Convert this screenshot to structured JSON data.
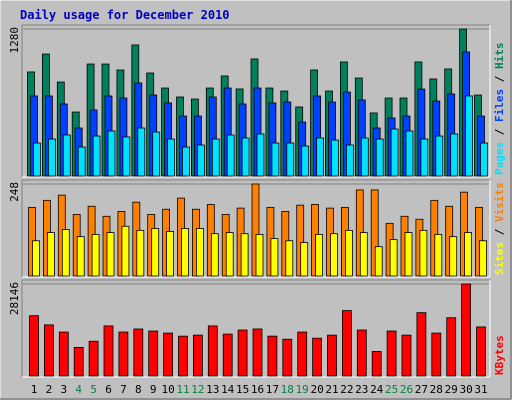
{
  "title": "Daily usage for December 2010",
  "categories": [
    "1",
    "2",
    "3",
    "4",
    "5",
    "6",
    "7",
    "8",
    "9",
    "10",
    "11",
    "12",
    "13",
    "14",
    "15",
    "16",
    "17",
    "18",
    "19",
    "20",
    "21",
    "22",
    "23",
    "24",
    "25",
    "26",
    "27",
    "28",
    "29",
    "30",
    "31"
  ],
  "label_colors": [
    "#000000",
    "#000000",
    "#000000",
    "#008040",
    "#008040",
    "#000000",
    "#000000",
    "#000000",
    "#000000",
    "#000000",
    "#008040",
    "#008040",
    "#000000",
    "#000000",
    "#000000",
    "#000000",
    "#000000",
    "#008040",
    "#008040",
    "#000000",
    "#000000",
    "#000000",
    "#000000",
    "#000000",
    "#008040",
    "#008040",
    "#000000",
    "#000000",
    "#000000",
    "#000000",
    "#000000"
  ],
  "legend_separator": " / ",
  "chart_data": [
    {
      "type": "bar",
      "ylim": [
        0,
        1280
      ],
      "yticks": [
        1280
      ],
      "series": [
        {
          "name": "Hits",
          "color": "#00805C",
          "values": [
            906,
            1062,
            818,
            557,
            975,
            975,
            923,
            1141,
            897,
            766,
            688,
            670,
            766,
            871,
            758,
            1019,
            766,
            740,
            601,
            923,
            740,
            993,
            853,
            549,
            679,
            679,
            993,
            845,
            932,
            1280,
            705
          ]
        },
        {
          "name": "Files",
          "color": "#0040FF",
          "values": [
            697,
            697,
            627,
            418,
            575,
            697,
            679,
            810,
            705,
            636,
            522,
            522,
            688,
            766,
            627,
            766,
            636,
            644,
            470,
            697,
            644,
            731,
            662,
            418,
            505,
            522,
            757,
            653,
            714,
            1080,
            522
          ]
        },
        {
          "name": "Pages",
          "color": "#00E0FF",
          "values": [
            287,
            322,
            357,
            252,
            348,
            392,
            340,
            418,
            383,
            322,
            252,
            270,
            322,
            357,
            331,
            366,
            287,
            287,
            261,
            331,
            313,
            270,
            331,
            322,
            409,
            392,
            322,
            348,
            366,
            697,
            287
          ]
        }
      ]
    },
    {
      "type": "bar",
      "ylim": [
        0,
        248
      ],
      "yticks": [
        248
      ],
      "series": [
        {
          "name": "Visits",
          "color": "#FF8000",
          "values": [
            185,
            204,
            218,
            166,
            188,
            161,
            174,
            199,
            166,
            180,
            210,
            180,
            193,
            166,
            183,
            248,
            185,
            174,
            191,
            193,
            183,
            185,
            232,
            232,
            142,
            161,
            153,
            204,
            188,
            226,
            185
          ]
        },
        {
          "name": "Sites",
          "color": "#FFFF00",
          "values": [
            95,
            117,
            125,
            106,
            112,
            117,
            134,
            123,
            128,
            120,
            128,
            128,
            114,
            117,
            114,
            112,
            101,
            95,
            90,
            112,
            114,
            123,
            117,
            79,
            98,
            117,
            123,
            112,
            106,
            117,
            95
          ]
        }
      ]
    },
    {
      "type": "bar",
      "ylim": [
        0,
        28146
      ],
      "yticks": [
        28146
      ],
      "series": [
        {
          "name": "KBytes",
          "color": "#FF0000",
          "values": [
            18450,
            15635,
            13446,
            8756,
            10632,
            15323,
            13446,
            14384,
            13759,
            13133,
            12196,
            12508,
            15323,
            12821,
            14072,
            14384,
            12196,
            11257,
            13446,
            11570,
            12508,
            20013,
            14072,
            7505,
            13759,
            12508,
            19388,
            13133,
            17824,
            28146,
            15010
          ]
        }
      ]
    }
  ]
}
